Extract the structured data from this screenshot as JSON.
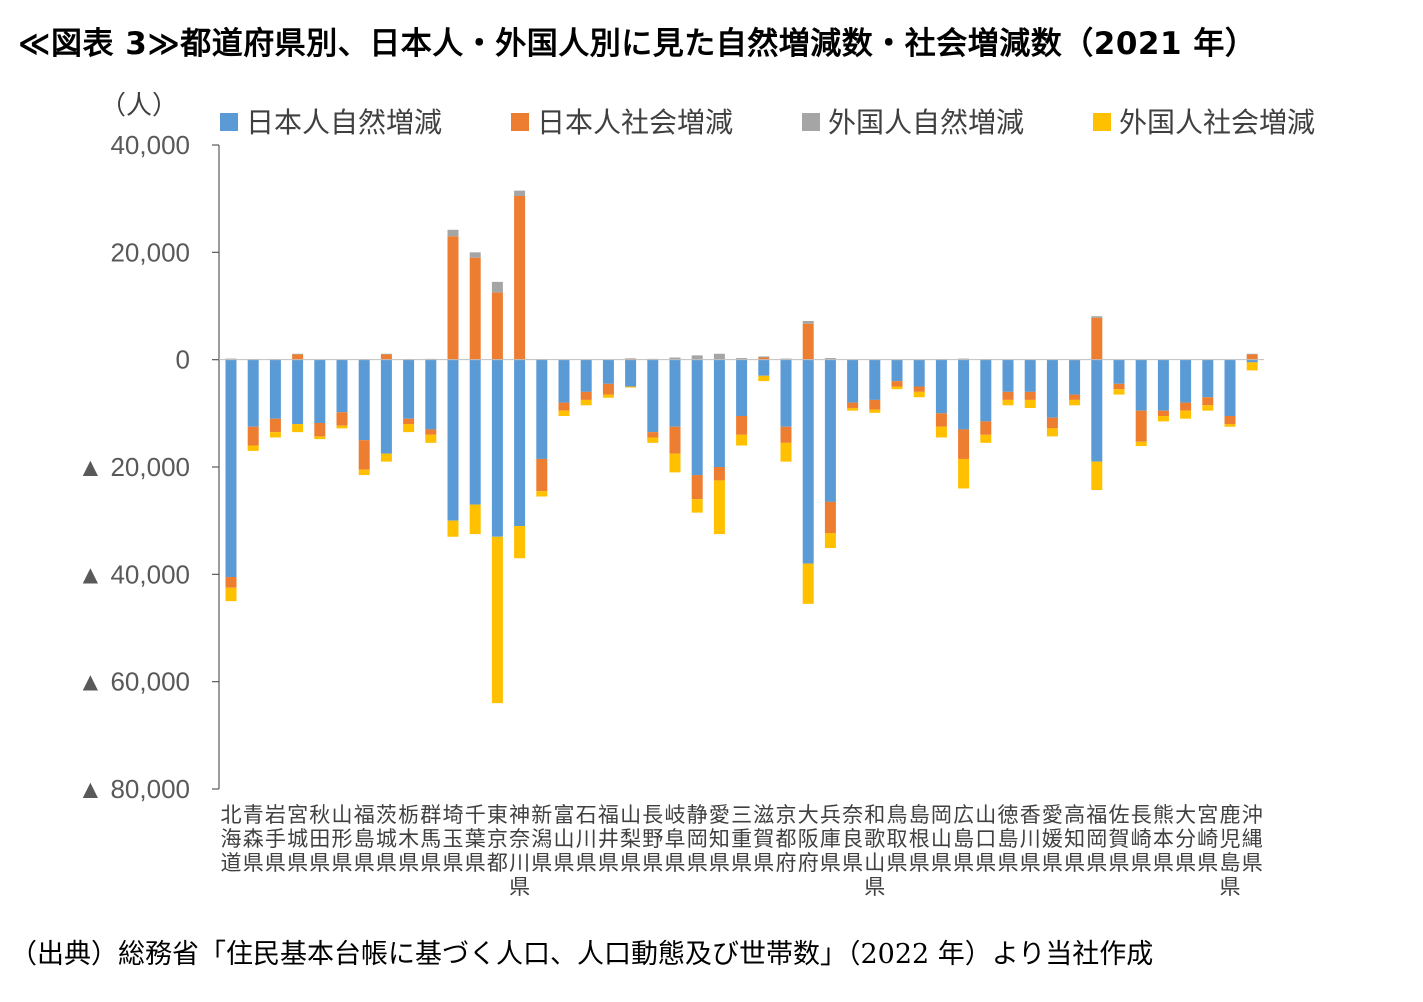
{
  "title": "≪図表 3≫都道府県別、日本人・外国人別に見た自然増減数・社会増減数（2021 年）",
  "source": "（出典）総務省「住民基本台帳に基づく人口、人口動態及び世帯数」（2022 年）より当社作成",
  "chart_data": {
    "type": "bar",
    "stacked": true,
    "unit_label": "（人）",
    "ylim": [
      -80000,
      40000
    ],
    "yticks": [
      {
        "value": 40000,
        "label": "40,000"
      },
      {
        "value": 20000,
        "label": "20,000"
      },
      {
        "value": 0,
        "label": "0"
      },
      {
        "value": -20000,
        "label": "▲ 20,000"
      },
      {
        "value": -40000,
        "label": "▲ 40,000"
      },
      {
        "value": -60000,
        "label": "▲ 60,000"
      },
      {
        "value": -80000,
        "label": "▲ 80,000"
      }
    ],
    "legend_position": "top",
    "categories": [
      "北海道",
      "青森県",
      "岩手県",
      "宮城県",
      "秋田県",
      "山形県",
      "福島県",
      "茨城県",
      "栃木県",
      "群馬県",
      "埼玉県",
      "千葉県",
      "東京都",
      "神奈川県",
      "新潟県",
      "富山県",
      "石川県",
      "福井県",
      "山梨県",
      "長野県",
      "岐阜県",
      "静岡県",
      "愛知県",
      "三重県",
      "滋賀県",
      "京都府",
      "大阪府",
      "兵庫県",
      "奈良県",
      "和歌山県",
      "鳥取県",
      "島根県",
      "岡山県",
      "広島県",
      "山口県",
      "徳島県",
      "香川県",
      "愛媛県",
      "高知県",
      "福岡県",
      "佐賀県",
      "長崎県",
      "熊本県",
      "大分県",
      "宮崎県",
      "鹿児島県",
      "沖縄県"
    ],
    "series": [
      {
        "name": "日本人自然増減",
        "color": "#5B9BD5",
        "values": [
          -40500,
          -12500,
          -11000,
          -12000,
          -11800,
          -9800,
          -15000,
          -17500,
          -11000,
          -13000,
          -30000,
          -27000,
          -33000,
          -31000,
          -18500,
          -8000,
          -6000,
          -4500,
          -5000,
          -13500,
          -12500,
          -21500,
          -20000,
          -10500,
          -3000,
          -12500,
          -38000,
          -26500,
          -8000,
          -7500,
          -4000,
          -5000,
          -10000,
          -13000,
          -11500,
          -6000,
          -6000,
          -10800,
          -6500,
          -19000,
          -4500,
          -9500,
          -9500,
          -8000,
          -7000,
          -10500,
          -500
        ]
      },
      {
        "name": "日本人社会増減",
        "color": "#ED7D31",
        "values": [
          -2000,
          -3500,
          -2500,
          1000,
          -2500,
          -2500,
          -5500,
          1000,
          -1000,
          -1000,
          23000,
          19000,
          12500,
          30500,
          -6000,
          -1500,
          -1500,
          -2000,
          200,
          -1000,
          -5000,
          -4500,
          -2500,
          -3500,
          400,
          -3000,
          6700,
          -5800,
          -1000,
          -1800,
          -1000,
          -1000,
          -2500,
          -5500,
          -2500,
          -1500,
          -1500,
          -2000,
          -1000,
          7800,
          -1000,
          -5800,
          -1000,
          -1500,
          -1500,
          -1500,
          1000
        ]
      },
      {
        "name": "外国人自然増減",
        "color": "#A5A5A5",
        "values": [
          200,
          100,
          100,
          100,
          50,
          50,
          100,
          100,
          100,
          150,
          1200,
          1000,
          2000,
          1000,
          100,
          50,
          50,
          50,
          50,
          150,
          400,
          800,
          1100,
          300,
          200,
          200,
          500,
          300,
          50,
          50,
          20,
          20,
          100,
          200,
          100,
          50,
          50,
          50,
          20,
          300,
          50,
          50,
          50,
          50,
          50,
          50,
          100
        ]
      },
      {
        "name": "外国人社会増減",
        "color": "#FFC000",
        "values": [
          -2500,
          -1000,
          -1000,
          -1500,
          -500,
          -500,
          -1000,
          -1500,
          -1500,
          -1500,
          -3000,
          -5500,
          -31000,
          -6000,
          -1000,
          -1000,
          -1000,
          -600,
          -200,
          -1000,
          -3500,
          -2500,
          -10000,
          -2000,
          -1000,
          -3500,
          -7500,
          -2800,
          -500,
          -600,
          -500,
          -1000,
          -2000,
          -5500,
          -1500,
          -1000,
          -1500,
          -1500,
          -1000,
          -5300,
          -1000,
          -800,
          -1000,
          -1500,
          -1000,
          -500,
          -1500
        ]
      }
    ]
  }
}
